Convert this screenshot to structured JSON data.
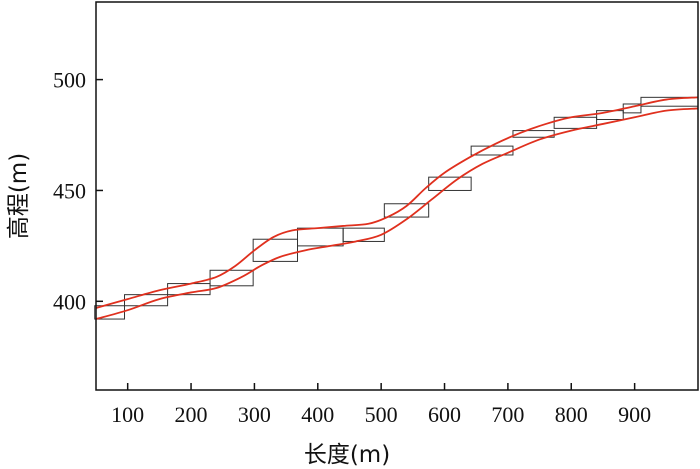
{
  "chart_data": {
    "type": "line",
    "xlabel": "长度(m)",
    "ylabel": "高程(m)",
    "xlim": [
      50,
      1000
    ],
    "ylim": [
      360,
      535
    ],
    "x_ticks": [
      100,
      200,
      300,
      400,
      500,
      600,
      700,
      800,
      900
    ],
    "y_ticks": [
      400,
      450,
      500
    ],
    "grid": false,
    "colors": {
      "curve": "#e0301e",
      "box": "#333333",
      "axis": "#111111"
    },
    "series": [
      {
        "x": [
          50,
          100,
          150,
          200,
          240,
          280,
          310,
          340,
          380,
          420,
          460,
          500,
          540,
          580,
          620,
          660,
          700,
          750,
          800,
          850,
          900,
          950,
          1000
        ],
        "y": [
          392,
          396,
          401,
          404,
          406,
          411,
          416,
          420,
          423,
          425,
          427,
          430,
          437,
          446,
          455,
          462,
          467,
          473,
          477,
          480,
          483,
          486,
          487
        ]
      },
      {
        "x": [
          50,
          100,
          150,
          200,
          240,
          270,
          300,
          330,
          360,
          400,
          440,
          480,
          510,
          540,
          570,
          600,
          640,
          680,
          720,
          760,
          800,
          850,
          900,
          950,
          1000
        ],
        "y": [
          397,
          401,
          405,
          408,
          411,
          416,
          423,
          429,
          432,
          433,
          434,
          435,
          438,
          443,
          451,
          458,
          465,
          471,
          476,
          480,
          483,
          485,
          488,
          491,
          492
        ]
      }
    ],
    "boxes": [
      {
        "x0": 48,
        "x1": 95,
        "y0": 392,
        "y1": 398
      },
      {
        "x0": 95,
        "x1": 163,
        "y0": 398,
        "y1": 403
      },
      {
        "x0": 163,
        "x1": 230,
        "y0": 403,
        "y1": 408
      },
      {
        "x0": 230,
        "x1": 298,
        "y0": 407,
        "y1": 414
      },
      {
        "x0": 298,
        "x1": 368,
        "y0": 418,
        "y1": 428
      },
      {
        "x0": 368,
        "x1": 440,
        "y0": 425,
        "y1": 433
      },
      {
        "x0": 440,
        "x1": 505,
        "y0": 427,
        "y1": 433
      },
      {
        "x0": 505,
        "x1": 575,
        "y0": 438,
        "y1": 444
      },
      {
        "x0": 575,
        "x1": 642,
        "y0": 450,
        "y1": 456
      },
      {
        "x0": 642,
        "x1": 708,
        "y0": 466,
        "y1": 470
      },
      {
        "x0": 708,
        "x1": 773,
        "y0": 474,
        "y1": 477
      },
      {
        "x0": 773,
        "x1": 840,
        "y0": 478,
        "y1": 483
      },
      {
        "x0": 840,
        "x1": 882,
        "y0": 482,
        "y1": 486
      },
      {
        "x0": 882,
        "x1": 910,
        "y0": 485,
        "y1": 489
      },
      {
        "x0": 910,
        "x1": 1000,
        "y0": 488,
        "y1": 492
      }
    ]
  }
}
